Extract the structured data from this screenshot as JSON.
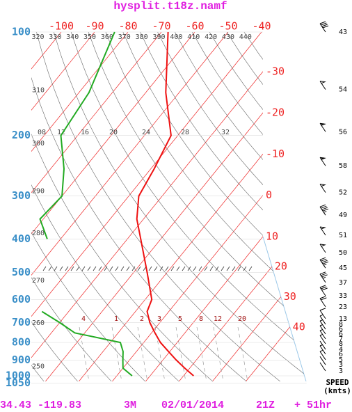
{
  "chart_data": {
    "type": "skewt",
    "title": "hysplit.t18z.namf",
    "footer": [
      "34.43 -119.83",
      "3M",
      "02/01/2014",
      "21Z",
      "+ 51hr"
    ],
    "ylim": [
      1050,
      100
    ],
    "log_y": true,
    "yticks": [
      100,
      200,
      300,
      400,
      500,
      600,
      700,
      800,
      900,
      1000,
      1050
    ],
    "xticks": [
      -100,
      -90,
      -80,
      -70,
      -60,
      -50,
      -40,
      -30,
      -20,
      -10,
      0,
      10,
      20,
      30,
      40
    ],
    "isotherm_color": "#ee2222",
    "thetas": [
      250,
      260,
      270,
      280,
      290,
      300,
      310,
      320,
      330,
      340,
      350,
      360,
      370,
      380,
      390,
      400,
      410,
      420,
      430,
      440
    ],
    "moist_labels": [
      "08",
      "12",
      "16",
      "20",
      "24",
      "28",
      "32"
    ],
    "mixing_ratio_labels": [
      "4",
      "1",
      "2",
      "3",
      "5",
      "8",
      "12",
      "20"
    ],
    "pressure": [
      100,
      150,
      200,
      250,
      300,
      350,
      400,
      500,
      600,
      650,
      700,
      750,
      800,
      850,
      900,
      950,
      1000
    ],
    "series": [
      {
        "color": "#ee1111",
        "values": [
          -68,
          -54,
          -42,
          -39,
          -37,
          -32,
          -26,
          -16,
          -8,
          -6.5,
          -3,
          1,
          5,
          9.6,
          14,
          18.5,
          23
        ]
      },
      {
        "color": "#22aa22",
        "values": [
          -84,
          -77,
          -75,
          -66,
          -60,
          -61,
          -54,
          null,
          null,
          -38,
          -30,
          -23,
          -7,
          -4,
          -2,
          0,
          4.6
        ]
      }
    ],
    "wind": {
      "pressure": [
        100,
        147,
        195,
        245,
        293,
        341,
        390,
        438,
        486,
        535,
        585,
        630,
        682,
        708,
        732,
        756,
        781,
        807,
        838,
        865,
        898,
        929,
        968
      ],
      "speed": [
        43,
        54,
        56,
        58,
        52,
        49,
        51,
        50,
        45,
        37,
        33,
        23,
        13,
        8,
        6,
        6,
        7,
        8,
        4,
        6,
        5,
        3,
        3
      ]
    },
    "speed_label": "SPEED",
    "speed_unit": "(knts)"
  }
}
